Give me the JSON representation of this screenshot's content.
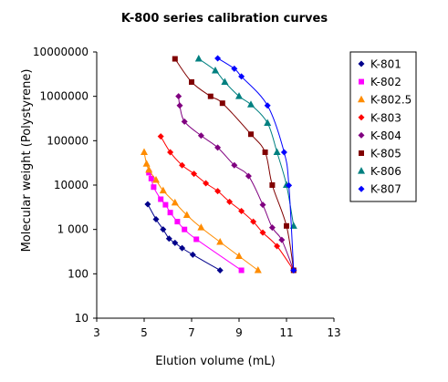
{
  "chart_data": {
    "type": "line",
    "title": "K-800 series calibration curves",
    "xlabel": "Elution volume (mL)",
    "ylabel": "Molecular weight (Polystyrene)",
    "xlim": [
      3,
      13
    ],
    "ylim": [
      10,
      10000000
    ],
    "y_scale": "log",
    "x_ticks": [
      "3",
      "5",
      "7",
      "9",
      "11",
      "13"
    ],
    "y_ticks": [
      "10",
      "100",
      "1 000",
      "10000",
      "100000",
      "1000000",
      "10000000"
    ],
    "legend_position": "right",
    "grid": false,
    "series": [
      {
        "name": "K-801",
        "color": "#00008b",
        "marker": "diamond",
        "points": [
          [
            5.15,
            3700
          ],
          [
            5.5,
            1700
          ],
          [
            5.8,
            1000
          ],
          [
            6.05,
            620
          ],
          [
            6.3,
            500
          ],
          [
            6.6,
            380
          ],
          [
            7.05,
            270
          ],
          [
            8.2,
            120
          ]
        ]
      },
      {
        "name": "K-802",
        "color": "#ff00ff",
        "marker": "square",
        "points": [
          [
            5.2,
            19000
          ],
          [
            5.3,
            14000
          ],
          [
            5.4,
            9000
          ],
          [
            5.7,
            4800
          ],
          [
            5.9,
            3600
          ],
          [
            6.1,
            2400
          ],
          [
            6.4,
            1500
          ],
          [
            6.7,
            1000
          ],
          [
            7.2,
            600
          ],
          [
            9.1,
            120
          ]
        ]
      },
      {
        "name": "K-802.5",
        "color": "#ff8c00",
        "marker": "triangle",
        "points": [
          [
            5.0,
            55000
          ],
          [
            5.1,
            30000
          ],
          [
            5.2,
            22000
          ],
          [
            5.5,
            13000
          ],
          [
            5.8,
            7500
          ],
          [
            6.3,
            4000
          ],
          [
            6.8,
            2100
          ],
          [
            7.4,
            1100
          ],
          [
            8.2,
            520
          ],
          [
            9.0,
            250
          ],
          [
            9.8,
            120
          ]
        ]
      },
      {
        "name": "K-803",
        "color": "#ff0000",
        "marker": "diamond",
        "points": [
          [
            5.7,
            125000
          ],
          [
            6.1,
            55000
          ],
          [
            6.6,
            28000
          ],
          [
            7.1,
            18000
          ],
          [
            7.6,
            11000
          ],
          [
            8.1,
            7300
          ],
          [
            8.6,
            4200
          ],
          [
            9.1,
            2600
          ],
          [
            9.6,
            1500
          ],
          [
            10.0,
            850
          ],
          [
            10.6,
            420
          ],
          [
            11.3,
            120
          ]
        ]
      },
      {
        "name": "K-804",
        "color": "#800080",
        "marker": "diamond",
        "points": [
          [
            6.45,
            1000000
          ],
          [
            6.5,
            620000
          ],
          [
            6.7,
            270000
          ],
          [
            7.4,
            130000
          ],
          [
            8.1,
            70000
          ],
          [
            8.8,
            28000
          ],
          [
            9.4,
            16000
          ],
          [
            10.0,
            3600
          ],
          [
            10.4,
            1100
          ],
          [
            10.8,
            580
          ],
          [
            11.3,
            120
          ]
        ]
      },
      {
        "name": "K-805",
        "color": "#800000",
        "marker": "square",
        "points": [
          [
            6.3,
            7000000
          ],
          [
            7.0,
            2100000
          ],
          [
            7.8,
            1000000
          ],
          [
            8.3,
            700000
          ],
          [
            9.5,
            140000
          ],
          [
            10.1,
            55000
          ],
          [
            10.4,
            10000
          ],
          [
            11.0,
            1200
          ],
          [
            11.3,
            120
          ]
        ]
      },
      {
        "name": "K-806",
        "color": "#008080",
        "marker": "triangle",
        "points": [
          [
            7.3,
            7000000
          ],
          [
            8.0,
            3800000
          ],
          [
            8.4,
            2100000
          ],
          [
            9.0,
            1000000
          ],
          [
            9.5,
            650000
          ],
          [
            10.2,
            250000
          ],
          [
            10.6,
            55000
          ],
          [
            11.0,
            10000
          ],
          [
            11.3,
            1200
          ]
        ]
      },
      {
        "name": "K-807",
        "color": "#0000ff",
        "marker": "diamond",
        "points": [
          [
            8.1,
            7200000
          ],
          [
            8.8,
            4200000
          ],
          [
            9.1,
            2800000
          ],
          [
            10.2,
            620000
          ],
          [
            10.9,
            55000
          ],
          [
            11.1,
            9800
          ],
          [
            11.3,
            120
          ]
        ]
      }
    ]
  }
}
